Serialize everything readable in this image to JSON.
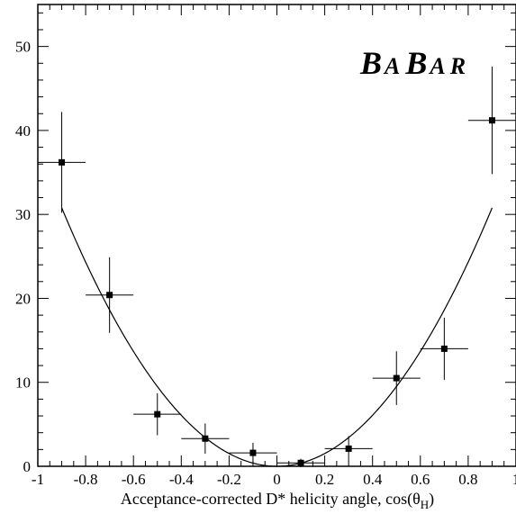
{
  "chart_data": {
    "type": "scatter",
    "title": "",
    "xlabel": "Acceptance-corrected D* helicity angle, cos(θ",
    "xlabel_sub": "H",
    "xlabel_close": ")",
    "ylabel": "",
    "xlim": [
      -1,
      1
    ],
    "ylim": [
      0,
      55
    ],
    "x_ticks": [
      -1,
      -0.8,
      -0.6,
      -0.4,
      -0.2,
      0,
      0.2,
      0.4,
      0.6,
      0.8,
      1
    ],
    "x_tick_labels": [
      "-1",
      "-0.8",
      "-0.6",
      "-0.4",
      "-0.2",
      "0",
      "0.2",
      "0.4",
      "0.6",
      "0.8",
      "1"
    ],
    "y_ticks": [
      0,
      10,
      20,
      30,
      40,
      50
    ],
    "y_tick_labels": [
      "0",
      "10",
      "20",
      "30",
      "40",
      "50"
    ],
    "grid": false,
    "points": [
      {
        "x": -0.9,
        "y": 36.2,
        "xerr": 0.1,
        "yerr_low": 6.0,
        "yerr_high": 6.0
      },
      {
        "x": -0.7,
        "y": 20.4,
        "xerr": 0.1,
        "yerr_low": 4.5,
        "yerr_high": 4.5
      },
      {
        "x": -0.5,
        "y": 6.2,
        "xerr": 0.1,
        "yerr_low": 2.5,
        "yerr_high": 2.5
      },
      {
        "x": -0.3,
        "y": 3.3,
        "xerr": 0.1,
        "yerr_low": 1.8,
        "yerr_high": 1.8
      },
      {
        "x": -0.1,
        "y": 1.6,
        "xerr": 0.1,
        "yerr_low": 1.2,
        "yerr_high": 1.2
      },
      {
        "x": 0.1,
        "y": 0.4,
        "xerr": 0.1,
        "yerr_low": 0.5,
        "yerr_high": 0.5
      },
      {
        "x": 0.3,
        "y": 2.1,
        "xerr": 0.1,
        "yerr_low": 1.5,
        "yerr_high": 1.5
      },
      {
        "x": 0.5,
        "y": 10.5,
        "xerr": 0.1,
        "yerr_low": 3.2,
        "yerr_high": 3.2
      },
      {
        "x": 0.7,
        "y": 14.0,
        "xerr": 0.1,
        "yerr_low": 3.7,
        "yerr_high": 3.7
      },
      {
        "x": 0.9,
        "y": 41.2,
        "xerr": 0.1,
        "yerr_low": 6.4,
        "yerr_high": 6.4
      }
    ],
    "fit_curve": {
      "type": "parabola",
      "a": 38.0,
      "x0": 0.0,
      "c": 0.0,
      "x_range": [
        -0.9,
        0.9
      ]
    },
    "logo": {
      "text": "BABAR",
      "letters": [
        "B",
        "A",
        "B",
        "A",
        "R"
      ]
    }
  }
}
